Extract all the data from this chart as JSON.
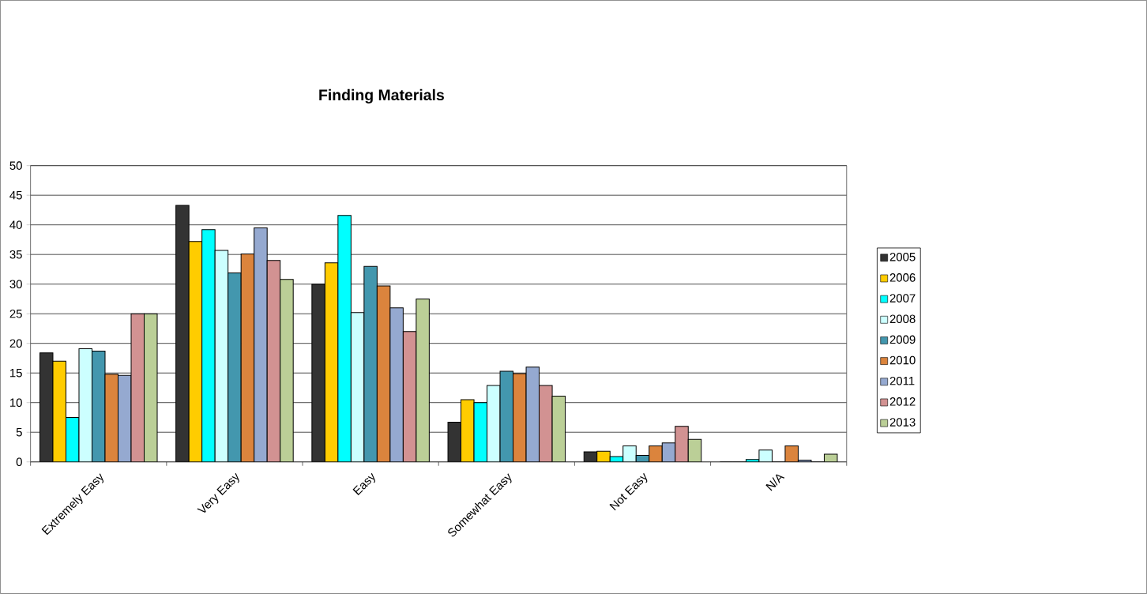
{
  "chart_data": {
    "type": "bar",
    "title": "Finding Materials",
    "categories": [
      "Extremely Easy",
      "Very Easy",
      "Easy",
      "Somewhat Easy",
      "Not Easy",
      "N/A"
    ],
    "series": [
      {
        "name": "2005",
        "color": "#333333",
        "values": [
          18.4,
          43.3,
          30.0,
          6.7,
          1.7,
          0
        ]
      },
      {
        "name": "2006",
        "color": "#ffcc00",
        "values": [
          17.0,
          37.2,
          33.6,
          10.5,
          1.8,
          0
        ]
      },
      {
        "name": "2007",
        "color": "#00ffff",
        "values": [
          7.5,
          39.2,
          41.6,
          10.0,
          0.9,
          0.4
        ]
      },
      {
        "name": "2008",
        "color": "#ccffff",
        "values": [
          19.1,
          35.7,
          25.2,
          12.9,
          2.7,
          2.0
        ]
      },
      {
        "name": "2009",
        "color": "#4397ae",
        "values": [
          18.7,
          31.9,
          33.0,
          15.3,
          1.1,
          0
        ]
      },
      {
        "name": "2010",
        "color": "#db843d",
        "values": [
          14.8,
          35.1,
          29.7,
          14.9,
          2.7,
          2.7
        ]
      },
      {
        "name": "2011",
        "color": "#95a9d0",
        "values": [
          14.6,
          39.5,
          26.0,
          16.0,
          3.2,
          0.3
        ]
      },
      {
        "name": "2012",
        "color": "#d29292",
        "values": [
          25.0,
          34.0,
          22.0,
          12.9,
          6.0,
          0
        ]
      },
      {
        "name": "2013",
        "color": "#bbcf97",
        "values": [
          25.0,
          30.8,
          27.5,
          11.1,
          3.8,
          1.3
        ]
      }
    ],
    "ylim": [
      0,
      50
    ],
    "yticks": [
      0,
      5,
      10,
      15,
      20,
      25,
      30,
      35,
      40,
      45,
      50
    ],
    "grid": "y",
    "legend": "right"
  }
}
